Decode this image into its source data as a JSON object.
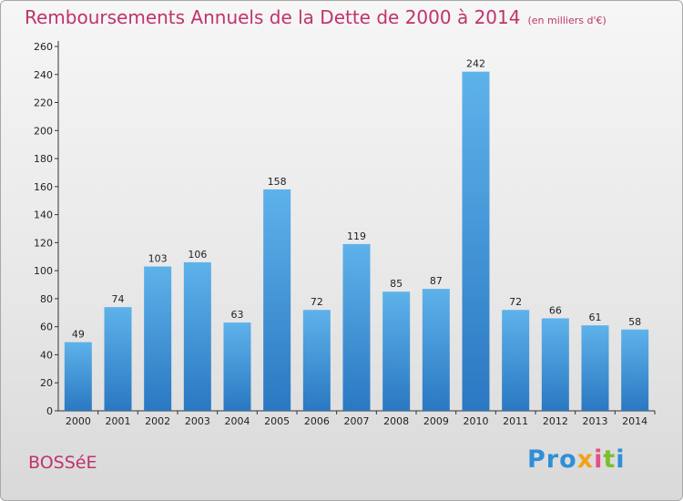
{
  "title": "Remboursements Annuels de la Dette de 2000 à 2014",
  "unit": "(en milliers d'€)",
  "place": "BOSSéE",
  "logo": {
    "text": "Proxiti",
    "parts": [
      "Pro",
      "x",
      "i",
      "t",
      "i"
    ]
  },
  "colors": {
    "bar_top": "#5eb2ea",
    "bar_bottom": "#2a78c2",
    "title": "#c0336c"
  },
  "chart_data": {
    "type": "bar",
    "title": "Remboursements Annuels de la Dette de 2000 à 2014",
    "xlabel": "",
    "ylabel": "",
    "categories": [
      "2000",
      "2001",
      "2002",
      "2003",
      "2004",
      "2005",
      "2006",
      "2007",
      "2008",
      "2009",
      "2010",
      "2011",
      "2012",
      "2013",
      "2014"
    ],
    "values": [
      49,
      74,
      103,
      106,
      63,
      158,
      72,
      119,
      85,
      87,
      242,
      72,
      66,
      61,
      58
    ],
    "ylim": [
      0,
      260
    ],
    "yticks": [
      0,
      20,
      40,
      60,
      80,
      100,
      120,
      140,
      160,
      180,
      200,
      220,
      240,
      260
    ],
    "grid": false,
    "legend": "none"
  }
}
